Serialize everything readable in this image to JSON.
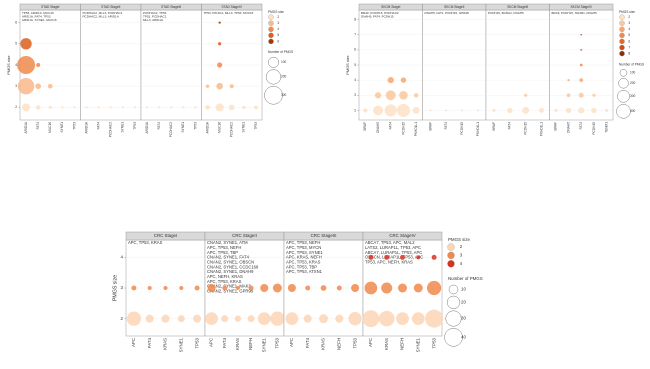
{
  "chart_data": [
    {
      "type": "bubble",
      "y_label": "PMGS size",
      "ylim": [
        1.5,
        6.5
      ],
      "yticks": [
        2,
        3,
        4,
        5,
        6
      ],
      "color_legend_title": "PMGS size",
      "color_levels": [
        2,
        3,
        4,
        5,
        6
      ],
      "colors": [
        "#fde0c5",
        "#f9b98a",
        "#f08a4b",
        "#d95f1c",
        "#a63603"
      ],
      "size_legend_title": "Number of PMGS",
      "size_ticks": [
        100,
        200,
        300
      ],
      "facets": [
        {
          "title": "STAD StageI",
          "categories": [
            "ARID1A",
            "FAT4",
            "MUC16",
            "SYNE1",
            "TP53"
          ],
          "annotations": [
            "TP53, ARID1A, MUC16",
            "ARID1A, FAT4, TP53",
            "ARID1A, SYNE1, MUC16"
          ],
          "x": [
            "ARID1A",
            "ARID1A",
            "ARID1A",
            "ARID1A",
            "FAT4",
            "FAT4",
            "FAT4",
            "MUC16",
            "MUC16",
            "SYNE1",
            "TP53"
          ],
          "y": [
            2,
            3,
            4,
            5,
            2,
            3,
            4,
            2,
            3,
            2,
            2
          ],
          "size": [
            60,
            250,
            300,
            120,
            20,
            30,
            15,
            10,
            20,
            5,
            5
          ]
        },
        {
          "title": "STAD StageII",
          "categories": [
            "ARID1A",
            "FAT4",
            "PCDHAC2",
            "SYNE1",
            "TP53"
          ],
          "annotations": [
            "PCDHAC2, MLL3, PCDHAC1",
            "PCDHAC2, MLL3, ARID1A"
          ],
          "x": [
            "ARID1A",
            "FAT4",
            "PCDHAC2",
            "SYNE1",
            "TP53"
          ],
          "y": [
            2,
            2,
            2,
            2,
            2
          ],
          "size": [
            5,
            5,
            5,
            5,
            5
          ]
        },
        {
          "title": "STAD StageIII",
          "categories": [
            "ARID1A",
            "FAT4",
            "PCDHAC2",
            "SYNE1",
            "TP53"
          ],
          "annotations": [
            "PCDHAC2, TP53",
            "TP53, PCDHAC1",
            "MLL3, ARID1A"
          ],
          "x": [
            "ARID1A",
            "FAT4",
            "PCDHAC2",
            "SYNE1",
            "TP53"
          ],
          "y": [
            2,
            2,
            2,
            2,
            2
          ],
          "size": [
            5,
            5,
            5,
            5,
            5
          ]
        },
        {
          "title": "STAD StageIV",
          "categories": [
            "ARID1A",
            "MUC16",
            "PCDHAC2",
            "SYNE1",
            "TP53"
          ],
          "annotations": [
            "TP53, PIK3CA, MLL3, TP53, MUC16"
          ],
          "x": [
            "ARID1A",
            "ARID1A",
            "MUC16",
            "MUC16",
            "MUC16",
            "MUC16",
            "MUC16",
            "PCDHAC2",
            "PCDHAC2",
            "SYNE1",
            "TP53"
          ],
          "y": [
            2,
            3,
            2,
            3,
            4,
            5,
            6,
            2,
            3,
            2,
            2
          ],
          "size": [
            20,
            10,
            60,
            40,
            25,
            10,
            5,
            30,
            15,
            10,
            15
          ]
        }
      ]
    },
    {
      "type": "bubble",
      "y_label": "PMGS size",
      "ylim": [
        1.5,
        8.5
      ],
      "yticks": [
        2,
        3,
        4,
        5,
        6,
        7,
        8
      ],
      "color_legend_title": "PMGS size",
      "color_levels": [
        2,
        3,
        4,
        5,
        6,
        7,
        8
      ],
      "colors": [
        "#fde0c5",
        "#fcc79a",
        "#f9a66c",
        "#f08a4b",
        "#e06a2a",
        "#c4501a",
        "#8c2d04"
      ],
      "size_legend_title": "Number of PMGS",
      "size_ticks": [
        100,
        200,
        300,
        400
      ],
      "facets": [
        {
          "title": "SKCM StageI",
          "categories": [
            "BRAF",
            "DNAH5",
            "FAT4",
            "PCDH15",
            "PKHD1L1"
          ],
          "annotations": [
            "BRAF, PCDH15, PCDHAC2",
            "DNAH5, FAT4, PCDH15"
          ],
          "x": [
            "BRAF",
            "DNAH5",
            "DNAH5",
            "FAT4",
            "FAT4",
            "FAT4",
            "PCDH15",
            "PCDH15",
            "PCDH15",
            "PKHD1L1",
            "PKHD1L1"
          ],
          "y": [
            2,
            2,
            3,
            2,
            3,
            4,
            2,
            3,
            4,
            2,
            3
          ],
          "size": [
            40,
            200,
            80,
            300,
            200,
            80,
            350,
            150,
            60,
            100,
            40
          ]
        },
        {
          "title": "SKCM StageII",
          "categories": [
            "BRAF",
            "FAT4",
            "PCDH15",
            "PKHD1L1"
          ],
          "annotations": [
            "DNAH5, FAT1, PCDH15, GPR98"
          ],
          "x": [
            "BRAF",
            "FAT4",
            "PCDH15",
            "PKHD1L1"
          ],
          "y": [
            2,
            2,
            2,
            2
          ],
          "size": [
            10,
            10,
            10,
            10
          ]
        },
        {
          "title": "SKCM StageIII",
          "categories": [
            "BRAF",
            "FAT4",
            "PCDH15",
            "PKHD1L1"
          ],
          "annotations": [
            "PCDH15, BCRA2, DNAH5"
          ],
          "x": [
            "BRAF",
            "FAT4",
            "PCDH15",
            "PCDH15",
            "PKHD1L1"
          ],
          "y": [
            2,
            2,
            2,
            3,
            2
          ],
          "size": [
            20,
            60,
            100,
            20,
            50
          ]
        },
        {
          "title": "SKCM StageIV",
          "categories": [
            "BRAF",
            "DNAH5",
            "FAT4",
            "PCDH15",
            "TENM1"
          ],
          "annotations": [
            "BRAF, PCDH15, TENM1, DNAH5"
          ],
          "x": [
            "BRAF",
            "DNAH5",
            "DNAH5",
            "DNAH5",
            "FAT4",
            "FAT4",
            "FAT4",
            "FAT4",
            "FAT4",
            "FAT4",
            "PCDH15",
            "PCDH15",
            "TENM1"
          ],
          "y": [
            2,
            2,
            3,
            4,
            2,
            3,
            4,
            5,
            6,
            7,
            2,
            3,
            2
          ],
          "size": [
            20,
            60,
            30,
            10,
            80,
            50,
            30,
            15,
            8,
            5,
            60,
            20,
            20
          ]
        }
      ]
    },
    {
      "type": "bubble",
      "y_label": "PMGS size",
      "ylim": [
        1.5,
        4.5
      ],
      "yticks": [
        2,
        3,
        4
      ],
      "color_legend_title": "PMGS size",
      "color_levels": [
        2,
        3,
        4
      ],
      "colors": [
        "#fbd5b5",
        "#f08a4b",
        "#d7301f"
      ],
      "size_legend_title": "Number of PMGS",
      "size_ticks": [
        10,
        20,
        30,
        40
      ],
      "facets": [
        {
          "title": "CRC StageI",
          "categories": [
            "APC",
            "FAT4",
            "KRAS",
            "SYNE1",
            "TP53"
          ],
          "annotations": [
            "APC, TP53, KRAS"
          ],
          "x": [
            "APC",
            "APC",
            "FAT4",
            "FAT4",
            "KRAS",
            "KRAS",
            "SYNE1",
            "SYNE1",
            "TP53",
            "TP53"
          ],
          "y": [
            2,
            3,
            2,
            3,
            2,
            3,
            2,
            3,
            2,
            3
          ],
          "size": [
            25,
            3,
            8,
            2,
            8,
            2,
            6,
            2,
            8,
            3
          ]
        },
        {
          "title": "CRC StageII",
          "categories": [
            "APC",
            "FAT4",
            "KRAS",
            "NEFH",
            "SYNE1",
            "TP53"
          ],
          "annotations": [
            "CNAN2, SYNE1, ATM",
            "APC, TP53, NEFH",
            "APC, TP53, TBP",
            "CNAN2, SYNE1, FAT4",
            "CNAN2, SYNE1, OBSCN",
            "CNAN2, SYNE1, CCDC168",
            "CNAN2, SYNE1, DNAH9",
            "APC, NEFH, KRAS",
            "APC, TP53, KRAS",
            "CNAN2, SYNE1, MAK3",
            "CNAN2, SYNE1, GPR98"
          ],
          "x": [
            "APC",
            "APC",
            "FAT4",
            "FAT4",
            "KRAS",
            "KRAS",
            "NEFH",
            "NEFH",
            "SYNE1",
            "SYNE1",
            "TP53",
            "TP53"
          ],
          "y": [
            2,
            3,
            2,
            3,
            2,
            3,
            2,
            3,
            2,
            3,
            2,
            3
          ],
          "size": [
            20,
            8,
            6,
            3,
            5,
            2,
            6,
            3,
            20,
            8,
            25,
            10
          ]
        },
        {
          "title": "CRC StageIII",
          "categories": [
            "APC",
            "FAT4",
            "KRAS",
            "NEFH",
            "TP53"
          ],
          "annotations": [
            "APC, TP53, NEFH",
            "APC, TP53, MYCN",
            "APC, TP53, SYNE1",
            "APC, KRAS, NEFH",
            "APC, TP53, KRAS",
            "APC, TP53, TBP",
            "APC, TP53, ATXN1"
          ],
          "x": [
            "APC",
            "APC",
            "FAT4",
            "FAT4",
            "KRAS",
            "KRAS",
            "NEFH",
            "NEFH",
            "TP53",
            "TP53"
          ],
          "y": [
            2,
            3,
            2,
            3,
            2,
            3,
            2,
            3,
            2,
            3
          ],
          "size": [
            20,
            8,
            8,
            3,
            10,
            4,
            8,
            3,
            22,
            8
          ]
        },
        {
          "title": "CRC StageIV",
          "categories": [
            "APC",
            "KRAS",
            "NEFH",
            "SYNE1",
            "TP53"
          ],
          "annotations": [
            "ABCA7, TP53, APC, MAL2",
            "LATS2, LURAP1L, TP53, APC",
            "ABCA7, LURAP1L, TP53, APC",
            "OBSCN, LURAP1L, TP53, APC",
            "TP53, APC, NEFH, KRAS"
          ],
          "x": [
            "APC",
            "APC",
            "APC",
            "KRAS",
            "KRAS",
            "KRAS",
            "NEFH",
            "NEFH",
            "NEFH",
            "SYNE1",
            "SYNE1",
            "SYNE1",
            "TP53",
            "TP53",
            "TP53"
          ],
          "y": [
            2,
            3,
            4,
            2,
            3,
            4,
            2,
            3,
            4,
            2,
            3,
            4,
            2,
            3,
            4
          ],
          "size": [
            35,
            20,
            3,
            30,
            15,
            3,
            20,
            10,
            3,
            20,
            10,
            2,
            40,
            25,
            3
          ]
        }
      ]
    }
  ]
}
